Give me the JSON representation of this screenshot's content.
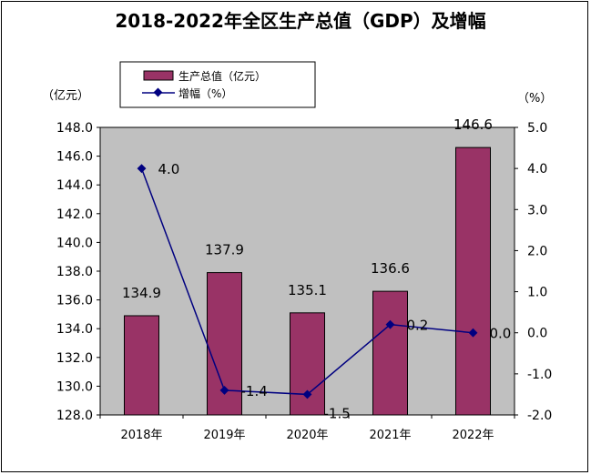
{
  "chart_data": {
    "type": "bar+line",
    "title": "2018-2022年全区生产总值（GDP）及增幅",
    "categories": [
      "2018年",
      "2019年",
      "2020年",
      "2021年",
      "2022年"
    ],
    "series": [
      {
        "name": "生产总值（亿元）",
        "type": "bar",
        "axis": "left",
        "values": [
          134.9,
          137.9,
          135.1,
          136.6,
          146.6
        ],
        "labels": [
          "134.9",
          "137.9",
          "135.1",
          "136.6",
          "146.6"
        ],
        "color": "#993366"
      },
      {
        "name": "增幅（%）",
        "type": "line",
        "axis": "right",
        "values": [
          4.0,
          -1.4,
          -1.5,
          0.2,
          0.0
        ],
        "labels": [
          "4.0",
          "-1.4",
          "-1.5",
          "0.2",
          "0.0"
        ],
        "color": "#000080"
      }
    ],
    "y_left": {
      "label": "（亿元）",
      "min": 128.0,
      "max": 148.0,
      "ticks": [
        "128.0",
        "130.0",
        "132.0",
        "134.0",
        "136.0",
        "138.0",
        "140.0",
        "142.0",
        "144.0",
        "146.0",
        "148.0"
      ]
    },
    "y_right": {
      "label": "（%）",
      "min": -2.0,
      "max": 5.0,
      "ticks": [
        "-2.0",
        "-1.0",
        "0.0",
        "1.0",
        "2.0",
        "3.0",
        "4.0",
        "5.0"
      ]
    },
    "legend": [
      "生产总值（亿元）",
      "增幅（%）"
    ],
    "legend_position": "top-left",
    "plot_background": "#c0c0c0"
  }
}
